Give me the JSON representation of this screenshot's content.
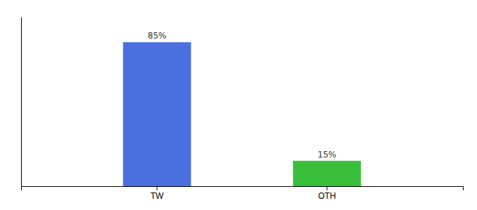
{
  "chart_data": {
    "type": "bar",
    "categories": [
      "TW",
      "OTH"
    ],
    "values": [
      85,
      15
    ],
    "value_labels": [
      "85%",
      "15%"
    ],
    "colors": [
      "#4a6fdf",
      "#3abf3a"
    ],
    "ylim": [
      0,
      100
    ],
    "data_labels": true,
    "tick_labels": "x"
  }
}
